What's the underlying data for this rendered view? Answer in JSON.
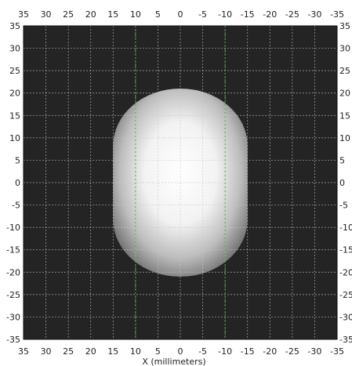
{
  "chart_data": {
    "type": "heatmap",
    "title": "",
    "xlabel": "X (millimeters)",
    "ylabel": "",
    "xlim": [
      35,
      -35
    ],
    "ylim": [
      -35,
      35
    ],
    "x_ticks": [
      "35",
      "30",
      "25",
      "20",
      "15",
      "10",
      "5",
      "0",
      "-5",
      "-10",
      "-15",
      "-20",
      "-25",
      "-30",
      "-35"
    ],
    "y_ticks": [
      "35",
      "30",
      "25",
      "20",
      "15",
      "10",
      "5",
      "0",
      "-5",
      "-10",
      "-15",
      "-20",
      "-25",
      "-30",
      "-35"
    ],
    "grid": true,
    "grid_step": 5,
    "background_color": "#242424",
    "grid_color": "#c8c8c8",
    "guide_lines_color": "#4caf50",
    "guide_lines_x": [
      10,
      -10
    ],
    "shape": {
      "kind": "rounded-capsule",
      "x_range": [
        15,
        -15
      ],
      "y_range": [
        -21,
        21
      ],
      "peak_color": "#ffffff",
      "edge_color": "#6e6e6e"
    }
  }
}
